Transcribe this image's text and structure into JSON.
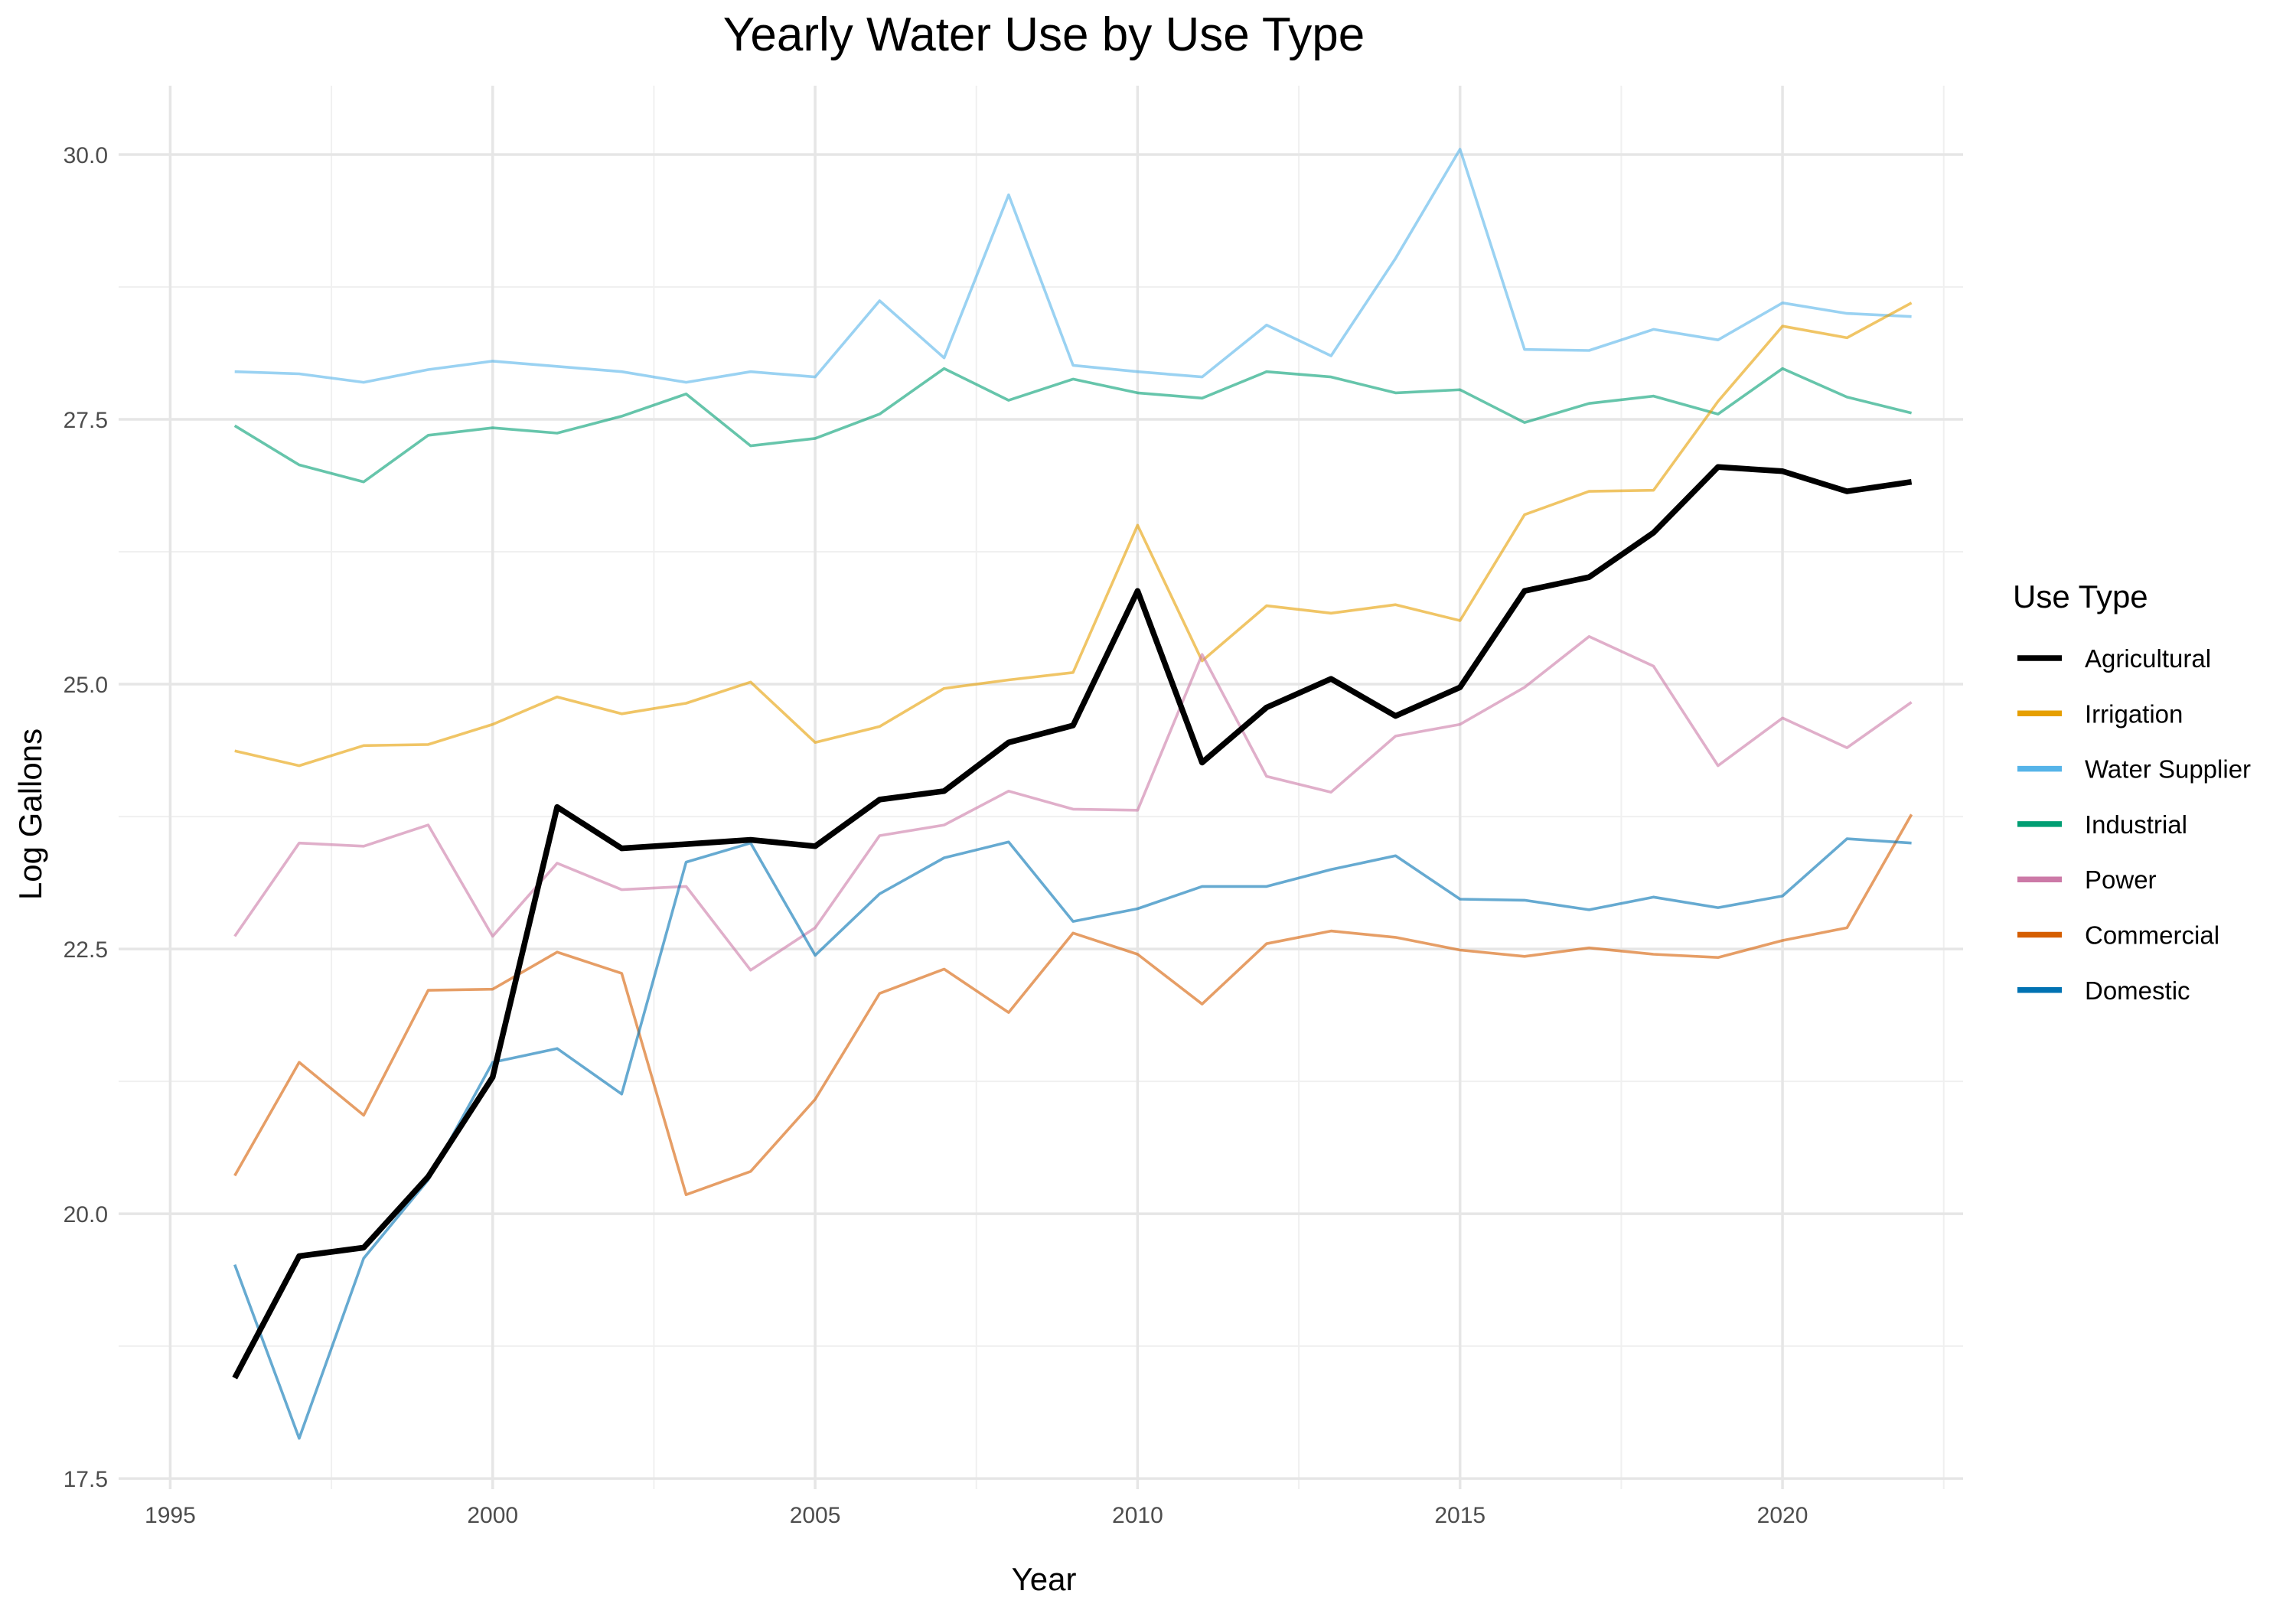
{
  "chart_data": {
    "type": "line",
    "title": "Yearly Water Use by Use Type",
    "xlabel": "Year",
    "ylabel": "Log Gallons",
    "xlim": [
      1994.2,
      2022.8
    ],
    "ylim": [
      17.4,
      30.65
    ],
    "x_ticks": [
      1995,
      2000,
      2005,
      2010,
      2015,
      2020
    ],
    "x_tick_labels": [
      "1995",
      "2000",
      "2005",
      "2010",
      "2015",
      "2020"
    ],
    "y_ticks": [
      17.5,
      20.0,
      22.5,
      25.0,
      27.5,
      30.0
    ],
    "y_tick_labels": [
      "17.5",
      "20.0",
      "22.5",
      "25.0",
      "27.5",
      "30.0"
    ],
    "grid": true,
    "legend_position": "right",
    "legend_title": "Use Type",
    "x": [
      1996,
      1997,
      1998,
      1999,
      2000,
      2001,
      2002,
      2003,
      2004,
      2005,
      2006,
      2007,
      2008,
      2009,
      2010,
      2011,
      2012,
      2013,
      2014,
      2015,
      2016,
      2017,
      2018,
      2019,
      2020,
      2021,
      2022
    ],
    "series": [
      {
        "name": "Water Supplier",
        "color": "#56B4E9",
        "opacity": 0.6,
        "emphasis": false,
        "values": [
          27.95,
          27.93,
          27.85,
          27.97,
          28.05,
          28.0,
          27.95,
          27.85,
          27.95,
          27.9,
          28.62,
          28.08,
          29.62,
          28.01,
          27.95,
          27.9,
          28.39,
          28.1,
          29.02,
          30.05,
          28.16,
          28.15,
          28.35,
          28.25,
          28.6,
          28.5,
          28.47
        ]
      },
      {
        "name": "Industrial",
        "color": "#009E73",
        "opacity": 0.6,
        "emphasis": false,
        "values": [
          27.44,
          27.07,
          26.91,
          27.35,
          27.42,
          27.37,
          27.53,
          27.74,
          27.25,
          27.32,
          27.55,
          27.98,
          27.68,
          27.88,
          27.75,
          27.7,
          27.95,
          27.9,
          27.75,
          27.78,
          27.47,
          27.65,
          27.72,
          27.55,
          27.98,
          27.71,
          27.56
        ]
      },
      {
        "name": "Irrigation",
        "color": "#E69F00",
        "opacity": 0.6,
        "emphasis": false,
        "values": [
          24.37,
          24.23,
          24.42,
          24.43,
          24.62,
          24.88,
          24.72,
          24.82,
          25.02,
          24.45,
          24.6,
          24.96,
          25.04,
          25.11,
          26.5,
          25.22,
          25.74,
          25.67,
          25.75,
          25.6,
          26.6,
          26.82,
          26.83,
          27.67,
          28.38,
          28.27,
          28.6
        ]
      },
      {
        "name": "Power",
        "color": "#CC79A7",
        "opacity": 0.6,
        "emphasis": false,
        "values": [
          22.62,
          23.5,
          23.47,
          23.67,
          22.62,
          23.31,
          23.06,
          23.09,
          22.3,
          22.7,
          23.57,
          23.67,
          23.99,
          23.82,
          23.81,
          25.28,
          24.13,
          23.98,
          24.51,
          24.62,
          24.97,
          25.45,
          25.17,
          24.23,
          24.68,
          24.4,
          24.83
        ]
      },
      {
        "name": "Commercial",
        "color": "#D55E00",
        "opacity": 0.6,
        "emphasis": false,
        "values": [
          20.36,
          21.43,
          20.93,
          22.11,
          22.12,
          22.47,
          22.27,
          20.18,
          20.4,
          21.08,
          22.08,
          22.31,
          21.9,
          22.65,
          22.45,
          21.98,
          22.55,
          22.67,
          22.61,
          22.49,
          22.43,
          22.51,
          22.45,
          22.42,
          22.58,
          22.7,
          23.77
        ]
      },
      {
        "name": "Domestic",
        "color": "#0072B2",
        "opacity": 0.6,
        "emphasis": false,
        "values": [
          19.52,
          17.88,
          19.58,
          20.32,
          21.43,
          21.56,
          21.13,
          23.32,
          23.5,
          22.44,
          23.02,
          23.36,
          23.51,
          22.76,
          22.88,
          23.09,
          23.09,
          23.25,
          23.38,
          22.97,
          22.96,
          22.87,
          22.99,
          22.89,
          23.0,
          23.54,
          23.5
        ]
      },
      {
        "name": "Agricultural",
        "color": "#000000",
        "opacity": 1,
        "emphasis": true,
        "values": [
          18.45,
          19.6,
          19.68,
          20.35,
          21.29,
          23.84,
          23.45,
          23.49,
          23.53,
          23.47,
          23.91,
          23.99,
          24.45,
          24.61,
          25.88,
          24.26,
          24.78,
          25.05,
          24.7,
          24.97,
          25.88,
          26.01,
          26.43,
          27.05,
          27.01,
          26.82,
          26.91
        ]
      }
    ],
    "legend_entries": [
      {
        "name": "Agricultural",
        "color": "#000000"
      },
      {
        "name": "Irrigation",
        "color": "#E69F00"
      },
      {
        "name": "Water Supplier",
        "color": "#56B4E9"
      },
      {
        "name": "Industrial",
        "color": "#009E73"
      },
      {
        "name": "Power",
        "color": "#CC79A7"
      },
      {
        "name": "Commercial",
        "color": "#D55E00"
      },
      {
        "name": "Domestic",
        "color": "#0072B2"
      }
    ]
  }
}
